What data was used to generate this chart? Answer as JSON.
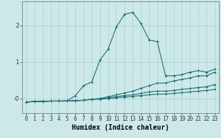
{
  "xlabel": "Humidex (Indice chaleur)",
  "x_values": [
    0,
    1,
    2,
    3,
    4,
    5,
    6,
    7,
    8,
    9,
    10,
    11,
    12,
    13,
    14,
    15,
    16,
    17,
    18,
    19,
    20,
    21,
    22,
    23
  ],
  "lines": [
    [
      -0.1,
      -0.08,
      -0.08,
      -0.07,
      -0.07,
      -0.06,
      0.08,
      0.35,
      0.45,
      1.05,
      1.35,
      1.95,
      2.3,
      2.35,
      2.05,
      1.6,
      1.55,
      0.62,
      0.62,
      0.65,
      0.72,
      0.76,
      0.72,
      0.8
    ],
    [
      -0.1,
      -0.08,
      -0.08,
      -0.07,
      -0.07,
      -0.07,
      -0.06,
      -0.05,
      -0.02,
      0.0,
      0.05,
      0.1,
      0.15,
      0.2,
      0.28,
      0.35,
      0.42,
      0.42,
      0.48,
      0.52,
      0.56,
      0.62,
      0.62,
      0.72
    ],
    [
      -0.1,
      -0.08,
      -0.08,
      -0.07,
      -0.07,
      -0.07,
      -0.06,
      -0.05,
      -0.02,
      -0.01,
      0.02,
      0.05,
      0.08,
      0.1,
      0.14,
      0.18,
      0.2,
      0.2,
      0.22,
      0.25,
      0.27,
      0.3,
      0.32,
      0.38
    ],
    [
      -0.1,
      -0.08,
      -0.08,
      -0.07,
      -0.07,
      -0.07,
      -0.06,
      -0.05,
      -0.02,
      -0.02,
      0.0,
      0.02,
      0.04,
      0.06,
      0.08,
      0.1,
      0.12,
      0.12,
      0.14,
      0.16,
      0.18,
      0.2,
      0.22,
      0.25
    ]
  ],
  "line_color": "#1a6b6b",
  "marker": "+",
  "markersize": 3,
  "linewidth": 0.8,
  "bg_color": "#cce8e8",
  "grid_color": "#aacece",
  "ylim": [
    -0.4,
    2.65
  ],
  "xlim": [
    -0.5,
    23.5
  ],
  "yticks": [
    0,
    1,
    2
  ],
  "ytick_labels": [
    "-0",
    "1",
    "2"
  ],
  "tick_fontsize": 5.5,
  "label_fontsize": 7
}
